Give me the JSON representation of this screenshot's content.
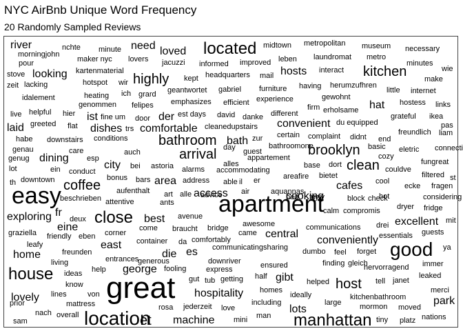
{
  "chart_data": {
    "type": "word-cloud",
    "title": "NYC AirBnb Unique Word Frequency",
    "subtitle": "20 Randomly Sampled Reviews",
    "text_color": "#000000",
    "words": [
      {
        "text": "river",
        "size": 3
      },
      {
        "text": "nchte",
        "size": 1
      },
      {
        "text": "minute",
        "size": 1
      },
      {
        "text": "need",
        "size": 3
      },
      {
        "text": "loved",
        "size": 3
      },
      {
        "text": "located",
        "size": 6
      },
      {
        "text": "midtown",
        "size": 1
      },
      {
        "text": "metropolitan",
        "size": 1
      },
      {
        "text": "museum",
        "size": 1
      },
      {
        "text": "necessary",
        "size": 1
      },
      {
        "text": "morningjohn",
        "size": 1
      },
      {
        "text": "maker nyc",
        "size": 1
      },
      {
        "text": "lovers",
        "size": 1
      },
      {
        "text": "jacuzzi",
        "size": 1
      },
      {
        "text": "informed",
        "size": 1
      },
      {
        "text": "improved",
        "size": 1
      },
      {
        "text": "leben",
        "size": 1
      },
      {
        "text": "laundromat",
        "size": 1
      },
      {
        "text": "metro",
        "size": 1
      },
      {
        "text": "pour",
        "size": 1
      },
      {
        "text": "minutes",
        "size": 1
      },
      {
        "text": "kartenmaterial",
        "size": 1
      },
      {
        "text": "looking",
        "size": 3
      },
      {
        "text": "highly",
        "size": 5
      },
      {
        "text": "kept",
        "size": 1
      },
      {
        "text": "headquarters",
        "size": 1
      },
      {
        "text": "mail",
        "size": 1
      },
      {
        "text": "hosts",
        "size": 3
      },
      {
        "text": "interact",
        "size": 1
      },
      {
        "text": "kitchen",
        "size": 5
      },
      {
        "text": "stove",
        "size": 1
      },
      {
        "text": "wie",
        "size": 1
      },
      {
        "text": "make",
        "size": 1
      },
      {
        "text": "zeit",
        "size": 1
      },
      {
        "text": "lacking",
        "size": 1
      },
      {
        "text": "hotspot",
        "size": 1
      },
      {
        "text": "wir",
        "size": 1
      },
      {
        "text": "geantwortet",
        "size": 1
      },
      {
        "text": "gabriel",
        "size": 1
      },
      {
        "text": "furniture",
        "size": 1
      },
      {
        "text": "having",
        "size": 1
      },
      {
        "text": "herumzufhren",
        "size": 1
      },
      {
        "text": "little",
        "size": 1
      },
      {
        "text": "internet",
        "size": 1
      },
      {
        "text": "idalement",
        "size": 1
      },
      {
        "text": "heating",
        "size": 1
      },
      {
        "text": "ich",
        "size": 1
      },
      {
        "text": "grard",
        "size": 1
      },
      {
        "text": "emphasizes",
        "size": 1
      },
      {
        "text": "efficient",
        "size": 1
      },
      {
        "text": "experience",
        "size": 1
      },
      {
        "text": "gewohnt",
        "size": 1
      },
      {
        "text": "hat",
        "size": 3
      },
      {
        "text": "hostess",
        "size": 1
      },
      {
        "text": "links",
        "size": 1
      },
      {
        "text": "genommen",
        "size": 1
      },
      {
        "text": "felipes",
        "size": 1
      },
      {
        "text": "firm",
        "size": 1
      },
      {
        "text": "erholsame",
        "size": 1
      },
      {
        "text": "live",
        "size": 1
      },
      {
        "text": "helpful",
        "size": 1
      },
      {
        "text": "hier",
        "size": 1
      },
      {
        "text": "ist",
        "size": 3
      },
      {
        "text": "fine um",
        "size": 1
      },
      {
        "text": "door",
        "size": 1
      },
      {
        "text": "der",
        "size": 3
      },
      {
        "text": "est days",
        "size": 1
      },
      {
        "text": "david",
        "size": 1
      },
      {
        "text": "danke",
        "size": 1
      },
      {
        "text": "different",
        "size": 1
      },
      {
        "text": "du equipped",
        "size": 1
      },
      {
        "text": "grateful",
        "size": 1
      },
      {
        "text": "ikea",
        "size": 1
      },
      {
        "text": "convenient",
        "size": 3
      },
      {
        "text": "laid",
        "size": 3
      },
      {
        "text": "greeted",
        "size": 1
      },
      {
        "text": "flat",
        "size": 1
      },
      {
        "text": "dishes",
        "size": 3
      },
      {
        "text": "trs",
        "size": 1
      },
      {
        "text": "comfortable",
        "size": 3
      },
      {
        "text": "cleanedupstairs",
        "size": 1
      },
      {
        "text": "freundlich",
        "size": 1
      },
      {
        "text": "pas",
        "size": 1
      },
      {
        "text": "certain",
        "size": 1
      },
      {
        "text": "habe",
        "size": 1
      },
      {
        "text": "downstairs",
        "size": 1
      },
      {
        "text": "conditions",
        "size": 1
      },
      {
        "text": "bathroom",
        "size": 5
      },
      {
        "text": "bath",
        "size": 3
      },
      {
        "text": "complaint",
        "size": 1
      },
      {
        "text": "didnt",
        "size": 1
      },
      {
        "text": "end",
        "size": 1
      },
      {
        "text": "liam",
        "size": 1
      },
      {
        "text": "genau",
        "size": 1
      },
      {
        "text": "zur",
        "size": 1
      },
      {
        "text": "basic",
        "size": 1
      },
      {
        "text": "connection",
        "size": 1
      },
      {
        "text": "bathroomone",
        "size": 1
      },
      {
        "text": "care",
        "size": 1
      },
      {
        "text": "auch",
        "size": 1
      },
      {
        "text": "brooklyn",
        "size": 5
      },
      {
        "text": "day",
        "size": 1
      },
      {
        "text": "guest",
        "size": 1
      },
      {
        "text": "genug",
        "size": 1
      },
      {
        "text": "dining",
        "size": 3
      },
      {
        "text": "esp",
        "size": 1
      },
      {
        "text": "arrival",
        "size": 5
      },
      {
        "text": "appartement",
        "size": 1
      },
      {
        "text": "eletric",
        "size": 1
      },
      {
        "text": "cozy",
        "size": 1
      },
      {
        "text": "alles",
        "size": 1
      },
      {
        "text": "fungreat",
        "size": 1
      },
      {
        "text": "city",
        "size": 3
      },
      {
        "text": "bei",
        "size": 1
      },
      {
        "text": "astoria",
        "size": 1
      },
      {
        "text": "alarms",
        "size": 1
      },
      {
        "text": "base",
        "size": 1
      },
      {
        "text": "dort",
        "size": 1
      },
      {
        "text": "lot",
        "size": 1
      },
      {
        "text": "ein",
        "size": 1
      },
      {
        "text": "conduct",
        "size": 1
      },
      {
        "text": "accommodating",
        "size": 1
      },
      {
        "text": "clean",
        "size": 5
      },
      {
        "text": "couldve",
        "size": 1
      },
      {
        "text": "filtered",
        "size": 1
      },
      {
        "text": "st",
        "size": 1
      },
      {
        "text": "bonus",
        "size": 1
      },
      {
        "text": "bars",
        "size": 1
      },
      {
        "text": "area",
        "size": 3
      },
      {
        "text": "address",
        "size": 1
      },
      {
        "text": "th",
        "size": 1
      },
      {
        "text": "downtown",
        "size": 1
      },
      {
        "text": "able",
        "size": 1
      },
      {
        "text": "il",
        "size": 1
      },
      {
        "text": "er",
        "size": 1
      },
      {
        "text": "areafire",
        "size": 1
      },
      {
        "text": "bietet",
        "size": 1
      },
      {
        "text": "cool",
        "size": 1
      },
      {
        "text": "coffee",
        "size": 5
      },
      {
        "text": "aufenthalt",
        "size": 1
      },
      {
        "text": "cafes",
        "size": 3
      },
      {
        "text": "ecke",
        "size": 1
      },
      {
        "text": "fragen",
        "size": 1
      },
      {
        "text": "easy",
        "size": 8
      },
      {
        "text": "access",
        "size": 3
      },
      {
        "text": "art",
        "size": 1
      },
      {
        "text": "alle",
        "size": 1
      },
      {
        "text": "advice",
        "size": 1
      },
      {
        "text": "air",
        "size": 1
      },
      {
        "text": "aquannas",
        "size": 1
      },
      {
        "text": "cooking",
        "size": 3
      },
      {
        "text": "ferry",
        "size": 1
      },
      {
        "text": "hot",
        "size": 1
      },
      {
        "text": "considering",
        "size": 1
      },
      {
        "text": "beschrieben",
        "size": 1
      },
      {
        "text": "attentive",
        "size": 1
      },
      {
        "text": "ants",
        "size": 1
      },
      {
        "text": "apartment",
        "size": 8
      },
      {
        "text": "bed",
        "size": 1
      },
      {
        "text": "ny",
        "size": 1
      },
      {
        "text": "block",
        "size": 1
      },
      {
        "text": "check",
        "size": 1
      },
      {
        "text": "dryer",
        "size": 1
      },
      {
        "text": "fridge",
        "size": 1
      },
      {
        "text": "exploring",
        "size": 3
      },
      {
        "text": "fr",
        "size": 3
      },
      {
        "text": "deux",
        "size": 1
      },
      {
        "text": "close",
        "size": 6
      },
      {
        "text": "best",
        "size": 3
      },
      {
        "text": "avenue",
        "size": 1
      },
      {
        "text": "calm",
        "size": 1
      },
      {
        "text": "compromis",
        "size": 1
      },
      {
        "text": "excellent",
        "size": 3
      },
      {
        "text": "mit",
        "size": 1
      },
      {
        "text": "eine",
        "size": 3
      },
      {
        "text": "awesome",
        "size": 1
      },
      {
        "text": "drei",
        "size": 1
      },
      {
        "text": "graziella",
        "size": 1
      },
      {
        "text": "corner",
        "size": 1
      },
      {
        "text": "come",
        "size": 1
      },
      {
        "text": "braucht",
        "size": 1
      },
      {
        "text": "bridge",
        "size": 1
      },
      {
        "text": "came",
        "size": 1
      },
      {
        "text": "central",
        "size": 3
      },
      {
        "text": "communications",
        "size": 1
      },
      {
        "text": "guests",
        "size": 1
      },
      {
        "text": "friendly",
        "size": 1
      },
      {
        "text": "eben",
        "size": 1
      },
      {
        "text": "container",
        "size": 1
      },
      {
        "text": "da",
        "size": 1
      },
      {
        "text": "comfortably",
        "size": 1
      },
      {
        "text": "conveniently",
        "size": 3
      },
      {
        "text": "essentials",
        "size": 1
      },
      {
        "text": "good",
        "size": 7
      },
      {
        "text": "leafy",
        "size": 1
      },
      {
        "text": "east",
        "size": 3
      },
      {
        "text": "es",
        "size": 3
      },
      {
        "text": "ya",
        "size": 1
      },
      {
        "text": "freunden",
        "size": 1
      },
      {
        "text": "die",
        "size": 3
      },
      {
        "text": "communicatingsharing",
        "size": 1
      },
      {
        "text": "dumbo",
        "size": 1
      },
      {
        "text": "feel",
        "size": 1
      },
      {
        "text": "forget",
        "size": 1
      },
      {
        "text": "home",
        "size": 3
      },
      {
        "text": "generous",
        "size": 1
      },
      {
        "text": "entrances",
        "size": 1
      },
      {
        "text": "downriver",
        "size": 1
      },
      {
        "text": "finding",
        "size": 1
      },
      {
        "text": "gleich",
        "size": 1
      },
      {
        "text": "immer",
        "size": 1
      },
      {
        "text": "living",
        "size": 1
      },
      {
        "text": "house",
        "size": 6
      },
      {
        "text": "help",
        "size": 1
      },
      {
        "text": "george",
        "size": 3
      },
      {
        "text": "fooling",
        "size": 1
      },
      {
        "text": "express",
        "size": 1
      },
      {
        "text": "ensured",
        "size": 1
      },
      {
        "text": "hervorragend",
        "size": 1
      },
      {
        "text": "ideas",
        "size": 1
      },
      {
        "text": "gut",
        "size": 1
      },
      {
        "text": "tub",
        "size": 1
      },
      {
        "text": "getting",
        "size": 1
      },
      {
        "text": "half",
        "size": 1
      },
      {
        "text": "gibt",
        "size": 3
      },
      {
        "text": "helped",
        "size": 1
      },
      {
        "text": "host",
        "size": 5
      },
      {
        "text": "tell",
        "size": 1
      },
      {
        "text": "janet",
        "size": 1
      },
      {
        "text": "leaked",
        "size": 1
      },
      {
        "text": "know",
        "size": 1
      },
      {
        "text": "lovely",
        "size": 3
      },
      {
        "text": "great",
        "size": 10
      },
      {
        "text": "hospitality",
        "size": 3
      },
      {
        "text": "homes",
        "size": 1
      },
      {
        "text": "merci",
        "size": 1
      },
      {
        "text": "lines",
        "size": 1
      },
      {
        "text": "von",
        "size": 1
      },
      {
        "text": "ideally",
        "size": 1
      },
      {
        "text": "kitchenbathroom",
        "size": 1
      },
      {
        "text": "park",
        "size": 3
      },
      {
        "text": "prior",
        "size": 1
      },
      {
        "text": "mattress",
        "size": 1
      },
      {
        "text": "rosa",
        "size": 1
      },
      {
        "text": "jederzeit",
        "size": 1
      },
      {
        "text": "love",
        "size": 1
      },
      {
        "text": "including",
        "size": 1
      },
      {
        "text": "lots",
        "size": 3
      },
      {
        "text": "large",
        "size": 1
      },
      {
        "text": "mormon",
        "size": 1
      },
      {
        "text": "moved",
        "size": 1
      },
      {
        "text": "nach",
        "size": 1
      },
      {
        "text": "overall",
        "size": 1
      },
      {
        "text": "et",
        "size": 5
      },
      {
        "text": "location",
        "size": 7
      },
      {
        "text": "machine",
        "size": 3
      },
      {
        "text": "mini",
        "size": 1
      },
      {
        "text": "man",
        "size": 1
      },
      {
        "text": "manhattan",
        "size": 6
      },
      {
        "text": "tiny",
        "size": 1
      },
      {
        "text": "platz",
        "size": 1
      },
      {
        "text": "nations",
        "size": 1
      },
      {
        "text": "sam",
        "size": 1
      }
    ]
  }
}
